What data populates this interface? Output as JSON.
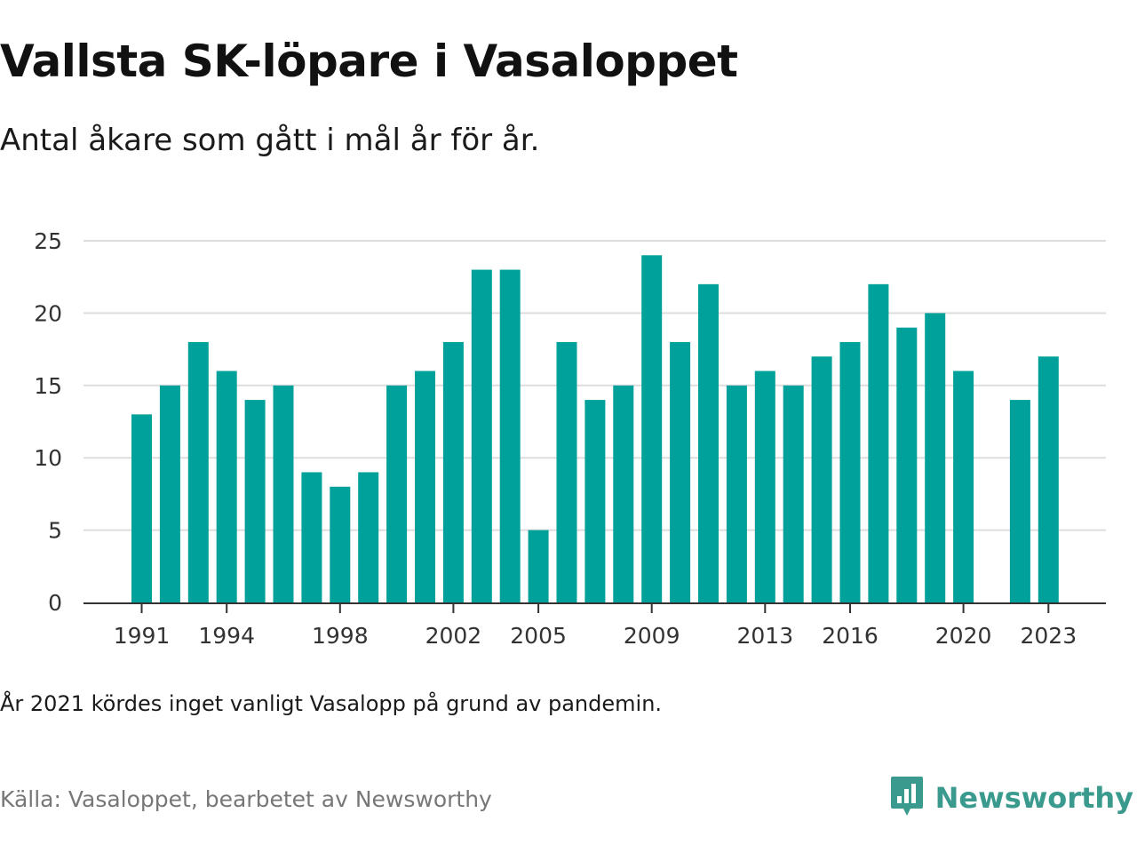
{
  "title": "Vallsta SK-löpare i Vasaloppet",
  "subtitle": "Antal åkare som gått i mål år för år.",
  "note": "År 2021 kördes inget vanligt Vasalopp på grund av pandemin.",
  "source": "Källa: Vasaloppet, bearbetet av Newsworthy",
  "brand": {
    "name": "Newsworthy",
    "icon": "newsworthy-logo-icon",
    "color": "#3a9a8e"
  },
  "chart_data": {
    "type": "bar",
    "bar_color": "#00a19a",
    "categories": [
      1991,
      1992,
      1993,
      1994,
      1995,
      1996,
      1997,
      1998,
      1999,
      2000,
      2001,
      2002,
      2003,
      2004,
      2005,
      2006,
      2007,
      2008,
      2009,
      2010,
      2011,
      2012,
      2013,
      2014,
      2015,
      2016,
      2017,
      2018,
      2019,
      2020,
      2021,
      2022,
      2023
    ],
    "values": [
      13,
      15,
      18,
      16,
      14,
      15,
      9,
      8,
      9,
      15,
      16,
      18,
      23,
      23,
      5,
      18,
      14,
      15,
      24,
      18,
      22,
      15,
      16,
      15,
      17,
      18,
      22,
      19,
      20,
      16,
      null,
      14,
      17
    ],
    "x_tick_labels": [
      "1991",
      "1994",
      "1998",
      "2002",
      "2005",
      "2009",
      "2013",
      "2016",
      "2020",
      "2023"
    ],
    "y_ticks": [
      0,
      5,
      10,
      15,
      20,
      25
    ],
    "ylim": [
      0,
      25
    ],
    "grid": true,
    "legend": "none",
    "xlabel": "",
    "ylabel": ""
  }
}
